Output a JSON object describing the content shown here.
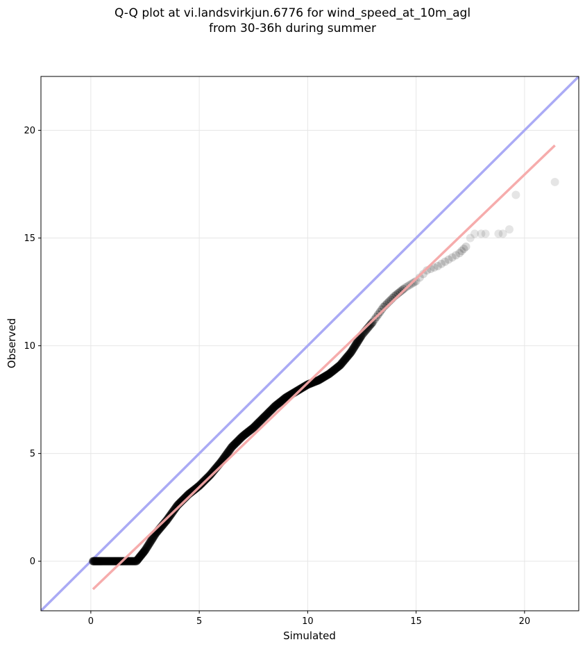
{
  "chart_data": {
    "type": "scatter",
    "title_lines": [
      "Q-Q plot at vi.landsvirkjun.6776 for wind_speed_at_10m_agl",
      "from 30-36h during summer"
    ],
    "xlabel": "Simulated",
    "ylabel": "Observed",
    "xlim": [
      -2.3,
      22.5
    ],
    "ylim": [
      -2.3,
      22.5
    ],
    "xticks": [
      0,
      5,
      10,
      15,
      20
    ],
    "yticks": [
      0,
      5,
      10,
      15,
      20
    ],
    "grid": true,
    "colors": {
      "points": "#000000",
      "identity_line": "#aaaaf5",
      "fit_line": "#f5a8a8"
    },
    "identity_line": {
      "name": "y = x"
    },
    "fit_line": {
      "x": [
        0.1,
        21.4
      ],
      "y": [
        -1.3,
        19.3
      ]
    },
    "series": [
      {
        "anchors": [
          [
            0.1,
            0.0
          ],
          [
            0.5,
            0.0
          ],
          [
            1.0,
            0.0
          ],
          [
            1.5,
            0.0
          ],
          [
            2.1,
            0.0
          ],
          [
            2.5,
            0.5
          ],
          [
            3.0,
            1.3
          ],
          [
            3.5,
            1.9
          ],
          [
            4.0,
            2.6
          ],
          [
            4.5,
            3.1
          ],
          [
            5.0,
            3.5
          ],
          [
            5.5,
            4.0
          ],
          [
            6.0,
            4.6
          ],
          [
            6.5,
            5.3
          ],
          [
            7.0,
            5.8
          ],
          [
            7.5,
            6.2
          ],
          [
            8.0,
            6.7
          ],
          [
            8.5,
            7.2
          ],
          [
            9.0,
            7.6
          ],
          [
            9.5,
            7.9
          ],
          [
            10.0,
            8.2
          ],
          [
            10.5,
            8.4
          ],
          [
            11.0,
            8.7
          ],
          [
            11.5,
            9.1
          ],
          [
            12.0,
            9.7
          ],
          [
            12.5,
            10.5
          ],
          [
            13.0,
            11.1
          ],
          [
            13.5,
            11.8
          ],
          [
            14.0,
            12.3
          ],
          [
            14.5,
            12.7
          ],
          [
            15.0,
            13.0
          ],
          [
            15.5,
            13.5
          ],
          [
            16.0,
            13.7
          ],
          [
            16.5,
            14.0
          ],
          [
            17.0,
            14.3
          ],
          [
            17.3,
            14.6
          ]
        ],
        "sparse_points": [
          [
            17.5,
            15.0
          ],
          [
            17.7,
            15.2
          ],
          [
            18.0,
            15.2
          ],
          [
            18.2,
            15.2
          ],
          [
            18.8,
            15.2
          ],
          [
            19.0,
            15.2
          ],
          [
            19.3,
            15.4
          ],
          [
            19.6,
            17.0
          ],
          [
            21.4,
            17.6
          ]
        ]
      }
    ]
  }
}
